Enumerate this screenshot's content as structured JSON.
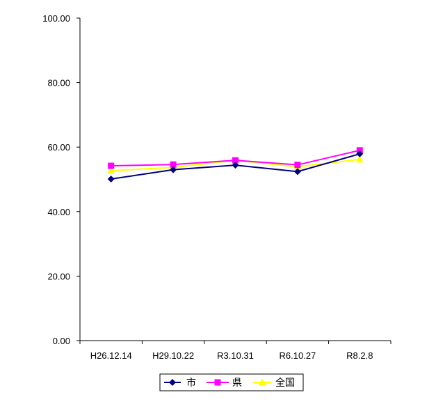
{
  "chart_data": {
    "type": "line",
    "categories": [
      "H26.12.14",
      "H29.10.22",
      "R3.10.31",
      "R6.10.27",
      "R8.2.8"
    ],
    "series": [
      {
        "name": "市",
        "values": [
          50.1,
          53.0,
          54.4,
          52.4,
          57.9
        ],
        "color": "#000080",
        "marker": "diamond"
      },
      {
        "name": "県",
        "values": [
          54.2,
          54.6,
          55.9,
          54.5,
          59.0
        ],
        "color": "#ff00ff",
        "marker": "square"
      },
      {
        "name": "全国",
        "values": [
          52.7,
          53.7,
          55.9,
          53.9,
          56.2
        ],
        "color": "#ffff00",
        "marker": "triangle"
      }
    ],
    "yticks": [
      "0.00",
      "20.00",
      "40.00",
      "60.00",
      "80.00",
      "100.00"
    ],
    "ylim": [
      0,
      100
    ],
    "grid": false,
    "legend_position": "bottom"
  }
}
